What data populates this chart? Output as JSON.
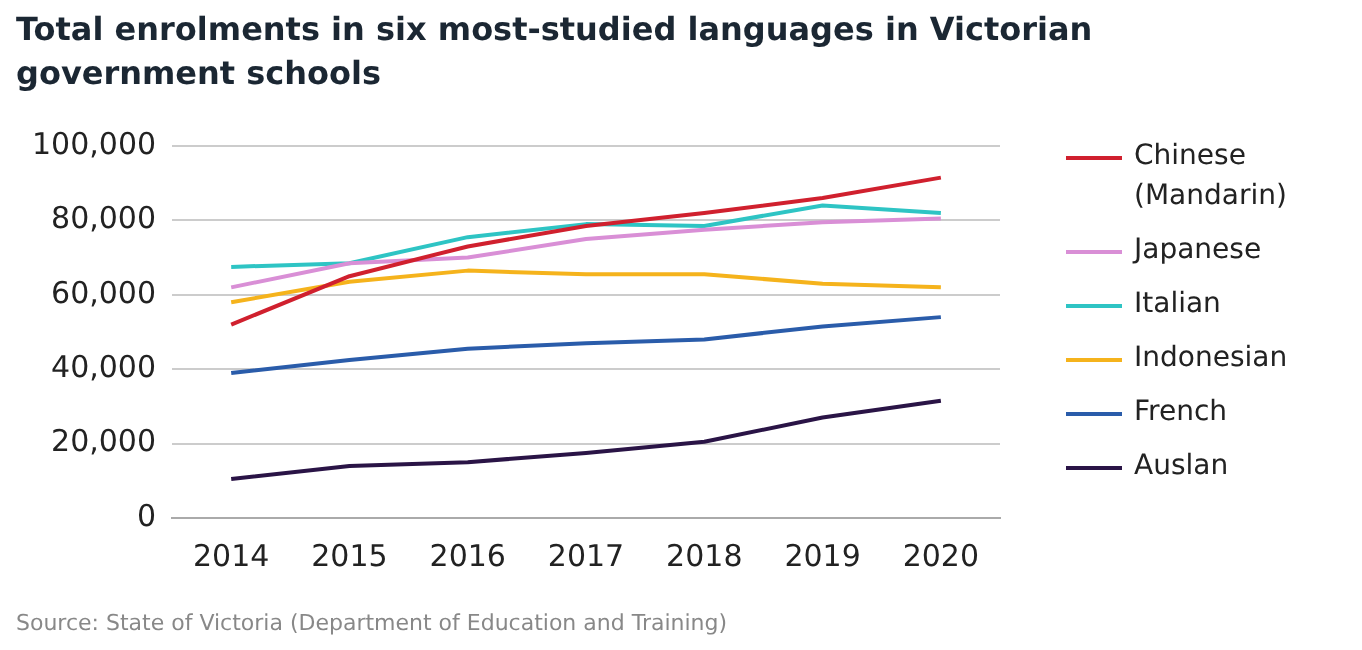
{
  "chart_data": {
    "type": "line",
    "title": "Total enrolments in six most-studied languages in Victorian government schools",
    "categories": [
      "2014",
      "2015",
      "2016",
      "2017",
      "2018",
      "2019",
      "2020"
    ],
    "series": [
      {
        "name": "Chinese (Mandarin)",
        "color": "#d0202e",
        "values": [
          52000,
          65000,
          73000,
          78500,
          82000,
          86000,
          91500
        ]
      },
      {
        "name": "Japanese",
        "color": "#d98fd6",
        "values": [
          62000,
          68500,
          70000,
          75000,
          77500,
          79500,
          80500
        ]
      },
      {
        "name": "Italian",
        "color": "#2ec4c4",
        "values": [
          67500,
          68500,
          75500,
          79000,
          78500,
          84000,
          82000
        ]
      },
      {
        "name": "Indonesian",
        "color": "#f5b31c",
        "values": [
          58000,
          63500,
          66500,
          65500,
          65500,
          63000,
          62000
        ]
      },
      {
        "name": "French",
        "color": "#2a5caa",
        "values": [
          39000,
          42500,
          45500,
          47000,
          48000,
          51500,
          54000
        ]
      },
      {
        "name": "Auslan",
        "color": "#2a1446",
        "values": [
          10500,
          14000,
          15000,
          17500,
          20500,
          27000,
          31500
        ]
      }
    ],
    "ylim": [
      0,
      100000
    ],
    "yticks": [
      {
        "value": 0,
        "label": "0"
      },
      {
        "value": 20000,
        "label": "20,000"
      },
      {
        "value": 40000,
        "label": "40,000"
      },
      {
        "value": 60000,
        "label": "60,000"
      },
      {
        "value": 80000,
        "label": "80,000"
      },
      {
        "value": 100000,
        "label": "100,000"
      }
    ],
    "grid": "y",
    "legend": "right",
    "marker": "none",
    "line_style": "solid",
    "annotations": [
      "Source: State of Victoria (Department of Education and Training)"
    ]
  }
}
